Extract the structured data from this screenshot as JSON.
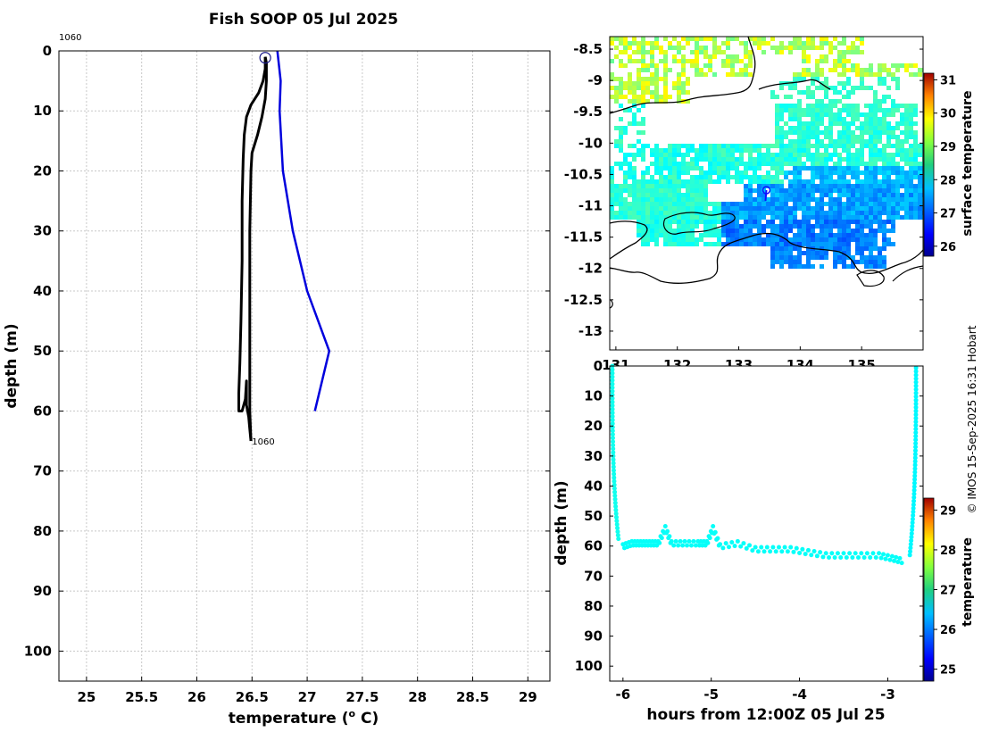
{
  "title": "Fish SOOP 05 Jul 2025",
  "credit": "© IMOS 15-Sep-2025 16:31 Hobart",
  "colors": {
    "profile_line": "#000000",
    "climatology_line": "#0000dd",
    "track": "#1010ff",
    "point": "#00b870"
  },
  "chart_data": [
    {
      "type": "line",
      "name": "temperature-profile",
      "xlabel": "temperature (° C)",
      "ylabel": "depth (m)",
      "xlim": [
        24.75,
        29.2
      ],
      "ylim": [
        105,
        0
      ],
      "xticks": [
        "25",
        "25.5",
        "26",
        "26.5",
        "27",
        "27.5",
        "28",
        "28.5",
        "29"
      ],
      "yticks": [
        "0",
        "10",
        "20",
        "30",
        "40",
        "50",
        "60",
        "70",
        "80",
        "90",
        "100"
      ],
      "grid": true,
      "annotations": {
        "top_label": "1060",
        "bottom_label": "1060",
        "start_marker": [
          26.62,
          1
        ]
      },
      "series": [
        {
          "name": "profile-down",
          "color": "#000000",
          "points": [
            [
              26.62,
              1
            ],
            [
              26.62,
              3
            ],
            [
              26.6,
              5
            ],
            [
              26.56,
              7
            ],
            [
              26.49,
              9
            ],
            [
              26.45,
              11
            ],
            [
              26.43,
              14
            ],
            [
              26.42,
              18
            ],
            [
              26.41,
              25
            ],
            [
              26.41,
              35
            ],
            [
              26.4,
              45
            ],
            [
              26.39,
              52
            ],
            [
              26.38,
              57
            ],
            [
              26.38,
              60
            ],
            [
              26.41,
              60
            ],
            [
              26.44,
              58
            ],
            [
              26.45,
              55
            ],
            [
              26.45,
              59
            ],
            [
              26.47,
              61
            ],
            [
              26.48,
              63
            ],
            [
              26.49,
              65
            ]
          ]
        },
        {
          "name": "profile-up",
          "color": "#000000",
          "points": [
            [
              26.49,
              65
            ],
            [
              26.48,
              60
            ],
            [
              26.48,
              50
            ],
            [
              26.48,
              40
            ],
            [
              26.48,
              30
            ],
            [
              26.49,
              20
            ],
            [
              26.5,
              17
            ],
            [
              26.55,
              14
            ],
            [
              26.59,
              11
            ],
            [
              26.62,
              8
            ],
            [
              26.63,
              5
            ],
            [
              26.63,
              2
            ],
            [
              26.62,
              1
            ]
          ]
        },
        {
          "name": "climatology",
          "color": "#0000dd",
          "points": [
            [
              26.73,
              0
            ],
            [
              26.76,
              5
            ],
            [
              26.75,
              10
            ],
            [
              26.78,
              20
            ],
            [
              26.87,
              30
            ],
            [
              27.0,
              40
            ],
            [
              27.2,
              50
            ],
            [
              27.07,
              60
            ]
          ]
        }
      ]
    },
    {
      "type": "heatmap",
      "name": "surface-temperature-map",
      "colorbar_label": "surface temperature",
      "xlim": [
        130.9,
        136.0
      ],
      "ylim": [
        -13.3,
        -8.3
      ],
      "xticks": [
        "131",
        "132",
        "133",
        "134",
        "135"
      ],
      "yticks": [
        "-8.5",
        "-9",
        "-9.5",
        "-10",
        "-10.5",
        "-11",
        "-11.5",
        "-12",
        "-12.5",
        "-13"
      ],
      "colorbar_ticks": [
        "26",
        "27",
        "28",
        "29",
        "30",
        "31"
      ],
      "colorbar_range": [
        25.7,
        31.2
      ],
      "track_position": [
        133.45,
        -10.75
      ]
    },
    {
      "type": "scatter",
      "name": "depth-time-section",
      "xlabel": "hours from 12:00Z 05 Jul 25",
      "ylabel": "depth (m)",
      "xlim": [
        -6.15,
        -2.6
      ],
      "ylim": [
        105,
        0
      ],
      "xticks": [
        "-6",
        "-5",
        "-4",
        "-3"
      ],
      "yticks": [
        "0",
        "10",
        "20",
        "30",
        "40",
        "50",
        "60",
        "70",
        "80",
        "90",
        "100"
      ],
      "colorbar_label": "temperature",
      "colorbar_ticks": [
        "25",
        "26",
        "27",
        "28",
        "29"
      ],
      "colorbar_range": [
        24.7,
        29.3
      ],
      "descent": {
        "x_start": -6.12,
        "x_end": -6.05,
        "depth_end": 58,
        "temp": 26.5
      },
      "bottom": [
        [
          -6.0,
          60
        ],
        [
          -5.9,
          59
        ],
        [
          -5.8,
          59
        ],
        [
          -5.7,
          59
        ],
        [
          -5.6,
          59
        ],
        [
          -5.52,
          54
        ],
        [
          -5.45,
          59
        ],
        [
          -5.3,
          59
        ],
        [
          -5.15,
          59
        ],
        [
          -5.05,
          59
        ],
        [
          -4.98,
          54
        ],
        [
          -4.9,
          60
        ],
        [
          -4.7,
          59
        ],
        [
          -4.5,
          61
        ],
        [
          -4.3,
          61
        ],
        [
          -4.1,
          61
        ],
        [
          -3.9,
          62
        ],
        [
          -3.7,
          63
        ],
        [
          -3.5,
          63
        ],
        [
          -3.3,
          63
        ],
        [
          -3.1,
          63
        ],
        [
          -2.95,
          64
        ],
        [
          -2.82,
          65
        ]
      ],
      "ascent": {
        "x_start": -2.75,
        "x_end": -2.68,
        "depth_start": 63,
        "temp": 26.4
      }
    }
  ]
}
